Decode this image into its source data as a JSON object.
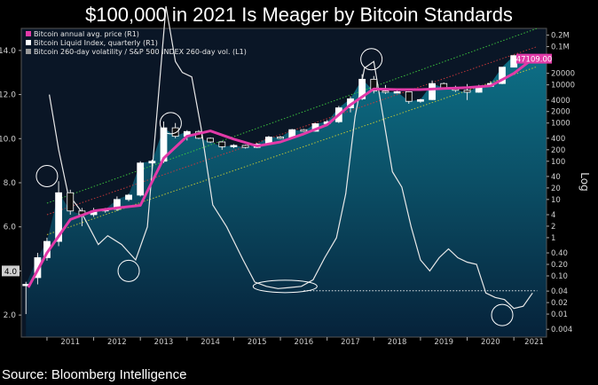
{
  "title": "$100,000 in 2021 Is Meager by Bitcoin Standards",
  "source": "Source: Bloomberg Intelligence",
  "chart_data": {
    "type": "line",
    "title": "$100,000 in 2021 Is Meager by Bitcoin Standards",
    "x_ticks": [
      "2011",
      "2012",
      "2013",
      "2014",
      "2015",
      "2016",
      "2017",
      "2018",
      "2019",
      "2020",
      "2021"
    ],
    "left_axis": {
      "ticks": [
        "2.0",
        "4.0",
        "6.0",
        "8.0",
        "10.0",
        "12.0",
        "14.0"
      ],
      "ylim": [
        1.0,
        15.0
      ],
      "scale": "linear"
    },
    "right_axis": {
      "label": "Log",
      "scale": "log",
      "ticks": [
        "0.004",
        "0.01",
        "0.02",
        "0.04",
        "0.10",
        "0.20",
        "0.40",
        "1",
        "2",
        "4",
        "10",
        "20",
        "40",
        "100",
        "200",
        "400",
        "1000",
        "2000",
        "4000",
        "10000",
        "20000",
        "0.1M",
        "0.2M"
      ],
      "tick_values": [
        0.004,
        0.01,
        0.02,
        0.04,
        0.1,
        0.2,
        0.4,
        1,
        2,
        4,
        10,
        20,
        40,
        100,
        200,
        400,
        1000,
        2000,
        4000,
        10000,
        20000,
        100000,
        200000
      ]
    },
    "legend": {
      "placement": "top-left",
      "entries": [
        {
          "label": "Bitcoin annual avg. price (R1)",
          "color": "#e23aa8"
        },
        {
          "label": "Bitcoin Liquid Index, quarterly (R1)",
          "color": "#ffffff"
        },
        {
          "label": "Bitcoin 260-day volatility / S&P 500 INDEX 260-day vol. (L1)",
          "color": "#9a9a9a"
        }
      ]
    },
    "last_price_label": "47109.00",
    "left_value_label": "4.0",
    "series": [
      {
        "name": "Bitcoin annual avg. price (R1)",
        "color": "#e23aa8",
        "axis": "right",
        "x": [
          2010.6,
          2011.0,
          2011.5,
          2012.0,
          2012.5,
          2013.0,
          2013.5,
          2014.0,
          2014.5,
          2015.0,
          2015.5,
          2016.0,
          2016.5,
          2017.0,
          2017.5,
          2018.0,
          2018.5,
          2019.0,
          2019.5,
          2020.0,
          2020.5,
          2021.0,
          2021.4
        ],
        "values": [
          0.05,
          0.4,
          3,
          5,
          6,
          7,
          120,
          450,
          620,
          380,
          250,
          320,
          520,
          900,
          3000,
          7800,
          7500,
          7500,
          8000,
          8500,
          9400,
          20000,
          47109
        ]
      },
      {
        "name": "Bitcoin Liquid Index, quarterly (R1)",
        "color": "#ffffff",
        "axis": "right",
        "type": "candlestick",
        "candles": [
          {
            "x": 2010.55,
            "o": 0.06,
            "c": 0.06,
            "h": 0.07,
            "l": 0.01
          },
          {
            "x": 2010.8,
            "o": 0.09,
            "c": 0.3,
            "h": 0.4,
            "l": 0.06
          },
          {
            "x": 2011.0,
            "o": 0.3,
            "c": 0.8,
            "h": 1.0,
            "l": 0.25
          },
          {
            "x": 2011.25,
            "o": 0.8,
            "c": 15,
            "h": 30,
            "l": 0.6
          },
          {
            "x": 2011.5,
            "o": 15,
            "c": 5,
            "h": 18,
            "l": 4
          },
          {
            "x": 2011.75,
            "o": 5,
            "c": 4,
            "h": 6,
            "l": 2
          },
          {
            "x": 2012.0,
            "o": 4,
            "c": 5,
            "h": 6,
            "l": 3.5
          },
          {
            "x": 2012.25,
            "o": 5,
            "c": 5.5,
            "h": 6,
            "l": 4.5
          },
          {
            "x": 2012.5,
            "o": 5.5,
            "c": 10,
            "h": 12,
            "l": 5
          },
          {
            "x": 2012.75,
            "o": 10,
            "c": 13,
            "h": 14,
            "l": 9
          },
          {
            "x": 2013.0,
            "o": 13,
            "c": 90,
            "h": 100,
            "l": 12
          },
          {
            "x": 2013.25,
            "o": 90,
            "c": 100,
            "h": 110,
            "l": 60
          },
          {
            "x": 2013.5,
            "o": 100,
            "c": 750,
            "h": 1100,
            "l": 90
          },
          {
            "x": 2013.75,
            "o": 750,
            "c": 450,
            "h": 1000,
            "l": 400
          },
          {
            "x": 2014.0,
            "o": 450,
            "c": 600,
            "h": 650,
            "l": 350
          },
          {
            "x": 2014.25,
            "o": 600,
            "c": 400,
            "h": 650,
            "l": 380
          },
          {
            "x": 2014.5,
            "o": 400,
            "c": 320,
            "h": 420,
            "l": 300
          },
          {
            "x": 2014.75,
            "o": 320,
            "c": 240,
            "h": 340,
            "l": 200
          },
          {
            "x": 2015.0,
            "o": 240,
            "c": 260,
            "h": 280,
            "l": 220
          },
          {
            "x": 2015.25,
            "o": 260,
            "c": 230,
            "h": 270,
            "l": 215
          },
          {
            "x": 2015.5,
            "o": 230,
            "c": 280,
            "h": 300,
            "l": 220
          },
          {
            "x": 2015.75,
            "o": 280,
            "c": 430,
            "h": 460,
            "l": 270
          },
          {
            "x": 2016.0,
            "o": 430,
            "c": 420,
            "h": 460,
            "l": 380
          },
          {
            "x": 2016.25,
            "o": 420,
            "c": 670,
            "h": 700,
            "l": 410
          },
          {
            "x": 2016.5,
            "o": 670,
            "c": 610,
            "h": 700,
            "l": 590
          },
          {
            "x": 2016.75,
            "o": 610,
            "c": 960,
            "h": 1000,
            "l": 600
          },
          {
            "x": 2017.0,
            "o": 960,
            "c": 1080,
            "h": 1200,
            "l": 900
          },
          {
            "x": 2017.25,
            "o": 1080,
            "c": 2500,
            "h": 2800,
            "l": 1000
          },
          {
            "x": 2017.5,
            "o": 2500,
            "c": 4300,
            "h": 5000,
            "l": 1900
          },
          {
            "x": 2017.75,
            "o": 4300,
            "c": 14000,
            "h": 19000,
            "l": 4000
          },
          {
            "x": 2018.0,
            "o": 14000,
            "c": 6900,
            "h": 17000,
            "l": 6000
          },
          {
            "x": 2018.25,
            "o": 6900,
            "c": 6400,
            "h": 9900,
            "l": 5800
          },
          {
            "x": 2018.5,
            "o": 6400,
            "c": 6600,
            "h": 7400,
            "l": 6100
          },
          {
            "x": 2018.75,
            "o": 6600,
            "c": 3700,
            "h": 6700,
            "l": 3200
          },
          {
            "x": 2019.0,
            "o": 3700,
            "c": 4100,
            "h": 4300,
            "l": 3400
          },
          {
            "x": 2019.25,
            "o": 4100,
            "c": 10800,
            "h": 13000,
            "l": 4000
          },
          {
            "x": 2019.5,
            "o": 10800,
            "c": 8300,
            "h": 11500,
            "l": 7800
          },
          {
            "x": 2019.75,
            "o": 8300,
            "c": 7200,
            "h": 9500,
            "l": 6500
          },
          {
            "x": 2020.0,
            "o": 7200,
            "c": 6400,
            "h": 10500,
            "l": 4000
          },
          {
            "x": 2020.25,
            "o": 6400,
            "c": 9100,
            "h": 10000,
            "l": 6200
          },
          {
            "x": 2020.5,
            "o": 9100,
            "c": 10800,
            "h": 12400,
            "l": 9000
          },
          {
            "x": 2020.75,
            "o": 10800,
            "c": 29000,
            "h": 29300,
            "l": 10400
          },
          {
            "x": 2021.0,
            "o": 29000,
            "c": 58000,
            "h": 61000,
            "l": 29000
          },
          {
            "x": 2021.25,
            "o": 58000,
            "c": 47109,
            "h": 64000,
            "l": 45000
          }
        ]
      },
      {
        "name": "Bitcoin 260-day volatility / S&P 500 INDEX 260-day vol. (L1)",
        "color": "#e8e8e8",
        "axis": "left",
        "x": [
          2011.05,
          2011.25,
          2011.45,
          2011.7,
          2011.9,
          2012.1,
          2012.3,
          2012.6,
          2012.9,
          2013.15,
          2013.35,
          2013.55,
          2013.75,
          2013.9,
          2014.1,
          2014.3,
          2014.55,
          2014.85,
          2015.2,
          2015.45,
          2015.7,
          2015.95,
          2016.2,
          2016.45,
          2016.7,
          2016.95,
          2017.2,
          2017.4,
          2017.6,
          2017.8,
          2018.0,
          2018.2,
          2018.4,
          2018.6,
          2018.8,
          2019.0,
          2019.2,
          2019.4,
          2019.6,
          2019.8,
          2020.0,
          2020.2,
          2020.4,
          2020.6,
          2020.8,
          2021.0,
          2021.2,
          2021.4
        ],
        "values": [
          12.0,
          9.5,
          7.5,
          6.8,
          6.0,
          5.2,
          5.6,
          5.2,
          4.5,
          6.0,
          11.0,
          16.0,
          13.5,
          13.0,
          12.8,
          10.5,
          7.0,
          6.0,
          4.5,
          3.5,
          3.3,
          3.2,
          3.25,
          3.3,
          3.6,
          4.6,
          5.5,
          7.5,
          11.0,
          13.2,
          13.5,
          11.0,
          8.5,
          7.8,
          6.0,
          4.5,
          4.0,
          4.6,
          5.0,
          4.6,
          4.4,
          4.3,
          3.0,
          2.8,
          2.7,
          2.3,
          2.4,
          3.0
        ]
      }
    ],
    "reference_lines": [
      {
        "color": "#3fcf3f",
        "style": "dotted",
        "axis": "right",
        "from": {
          "x": 2011.0,
          "y": 8
        },
        "to": {
          "x": 2021.5,
          "y": 300000
        }
      },
      {
        "color": "#d23a3a",
        "style": "dotted",
        "axis": "right",
        "from": {
          "x": 2011.0,
          "y": 4
        },
        "to": {
          "x": 2021.5,
          "y": 100000
        }
      },
      {
        "color": "#cccc33",
        "style": "dotted",
        "axis": "right",
        "from": {
          "x": 2011.0,
          "y": 1.2
        },
        "to": {
          "x": 2021.5,
          "y": 30000
        }
      },
      {
        "color": "#ffffff",
        "style": "dotted",
        "axis": "left",
        "from": {
          "x": 2016.5,
          "y": 3.1
        },
        "to": {
          "x": 2021.5,
          "y": 3.1
        }
      }
    ],
    "annotations": [
      {
        "shape": "circle",
        "x": 2011.0,
        "y": 8.3,
        "axis": "left"
      },
      {
        "shape": "circle",
        "x": 2012.75,
        "y": 4.0,
        "axis": "left"
      },
      {
        "shape": "circle",
        "x": 2013.65,
        "y": 10.7,
        "axis": "left"
      },
      {
        "shape": "ellipse",
        "x": 2016.1,
        "y": 3.3,
        "axis": "left"
      },
      {
        "shape": "circle",
        "x": 2017.95,
        "y": 13.6,
        "axis": "left"
      },
      {
        "shape": "circle",
        "x": 2020.75,
        "y": 2.0,
        "axis": "left"
      }
    ]
  }
}
